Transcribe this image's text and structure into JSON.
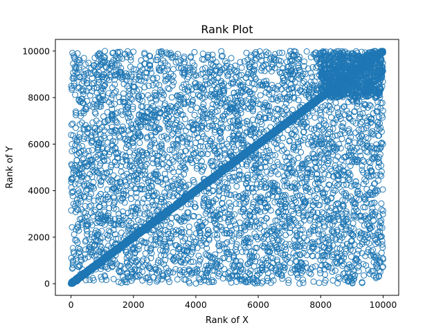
{
  "chart_data": {
    "type": "scatter",
    "title": "Rank Plot",
    "xlabel": "Rank of X",
    "ylabel": "Rank of Y",
    "xlim": [
      -500,
      10500
    ],
    "ylim": [
      -500,
      10500
    ],
    "xticks": [
      0,
      2000,
      4000,
      6000,
      8000,
      10000
    ],
    "yticks": [
      0,
      2000,
      4000,
      6000,
      8000,
      10000
    ],
    "grid": false,
    "marker": "hollow-circle",
    "color": "#1f77b4",
    "series": [
      {
        "description_components": [
          {
            "component": "diagonal",
            "x_range": [
              0,
              10000
            ],
            "y_equals_x": true,
            "approx_points": 4000
          },
          {
            "component": "uniform-scatter",
            "x_range": [
              0,
              10000
            ],
            "y_range": [
              0,
              10000
            ],
            "approx_points": 4200
          },
          {
            "component": "upper-right-cluster",
            "x_range": [
              8000,
              10000
            ],
            "y_range": [
              8000,
              10000
            ],
            "approx_points": 800
          }
        ]
      }
    ]
  }
}
